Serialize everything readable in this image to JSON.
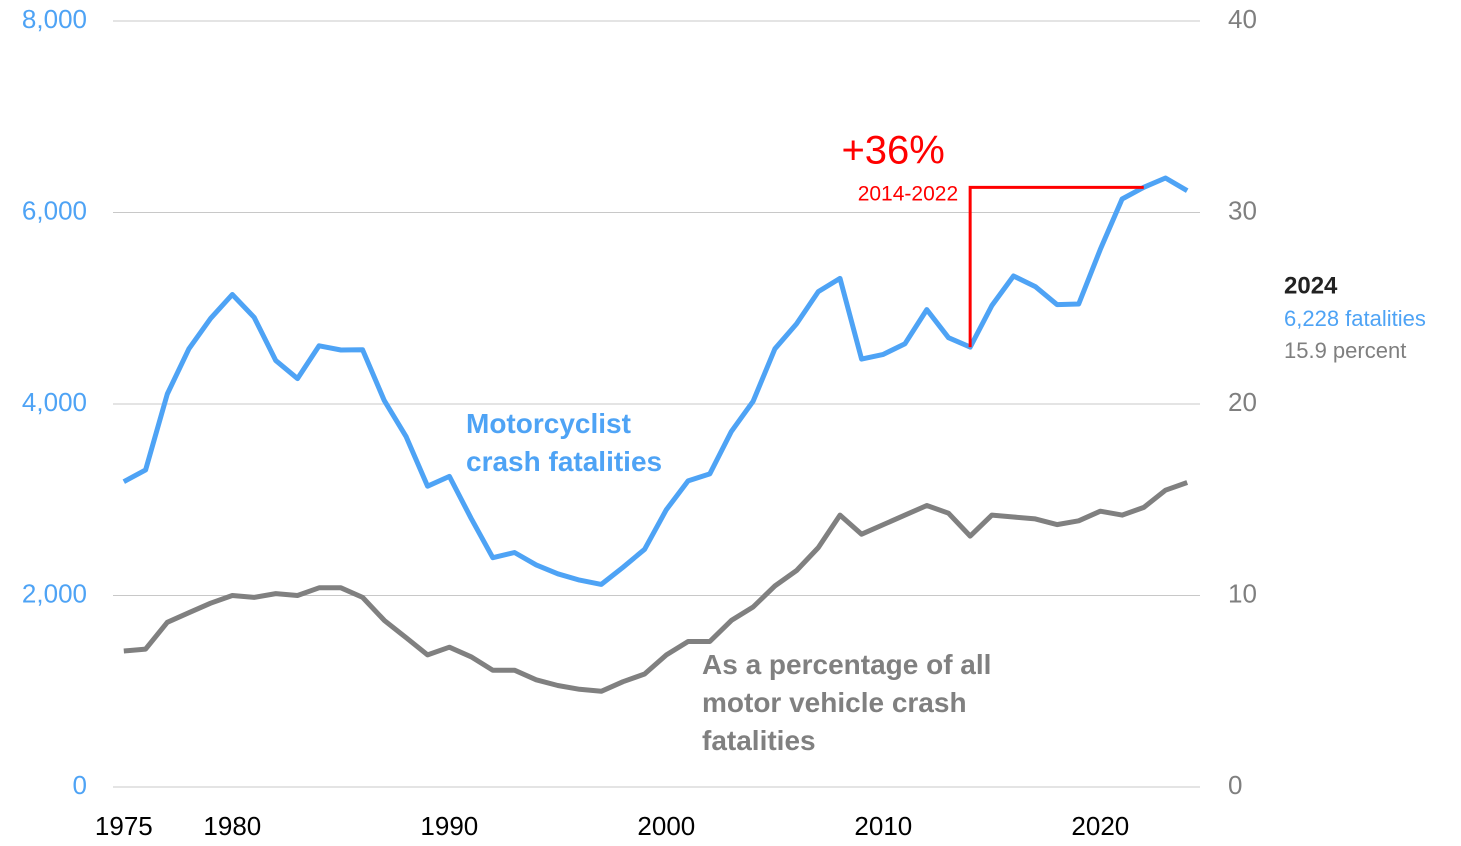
{
  "chart_data": {
    "type": "line",
    "x": [
      1975,
      1976,
      1977,
      1978,
      1979,
      1980,
      1981,
      1982,
      1983,
      1984,
      1985,
      1986,
      1987,
      1988,
      1989,
      1990,
      1991,
      1992,
      1993,
      1994,
      1995,
      1996,
      1997,
      1998,
      1999,
      2000,
      2001,
      2002,
      2003,
      2004,
      2005,
      2006,
      2007,
      2008,
      2009,
      2010,
      2011,
      2012,
      2013,
      2014,
      2015,
      2016,
      2017,
      2018,
      2019,
      2020,
      2021,
      2022,
      2023,
      2024
    ],
    "xlim": [
      1974.5,
      2024.5
    ],
    "xticks": [
      1975,
      1980,
      1990,
      2000,
      2010,
      2020
    ],
    "ylim": [
      0,
      8000
    ],
    "yticks": [
      0,
      {
        "value": 2000,
        "label": "2,000"
      },
      {
        "value": 4000,
        "label": "4,000"
      },
      {
        "value": 6000,
        "label": "6,000"
      },
      {
        "value": 8000,
        "label": "8,000"
      }
    ],
    "y2lim": [
      0,
      40
    ],
    "y2ticks": [
      0,
      10,
      20,
      30,
      40
    ],
    "grid": true,
    "series": [
      {
        "name": "Motorcyclist crash fatalities",
        "color": "#4ea3f5",
        "values": [
          3189,
          3312,
          4104,
          4577,
          4894,
          5144,
          4906,
          4453,
          4265,
          4608,
          4564,
          4566,
          4036,
          3662,
          3141,
          3244,
          2806,
          2395,
          2449,
          2320,
          2227,
          2161,
          2116,
          2294,
          2483,
          2897,
          3197,
          3270,
          3714,
          4028,
          4576,
          4837,
          5174,
          5312,
          4469,
          4518,
          4630,
          4986,
          4692,
          4594,
          5029,
          5337,
          5226,
          5038,
          5044,
          5615,
          6141,
          6263,
          6360,
          6228
        ]
      },
      {
        "name": "As a percentage of all motor vehicle crash fatalities",
        "color": "#808080",
        "axis": "y2",
        "values": [
          7.1,
          7.2,
          8.6,
          9.1,
          9.6,
          10.0,
          9.9,
          10.1,
          10.0,
          10.4,
          10.4,
          9.9,
          8.7,
          7.8,
          6.9,
          7.3,
          6.8,
          6.1,
          6.1,
          5.6,
          5.3,
          5.1,
          5.0,
          5.5,
          5.9,
          6.9,
          7.6,
          7.6,
          8.7,
          9.4,
          10.5,
          11.3,
          12.5,
          14.2,
          13.2,
          13.7,
          14.2,
          14.7,
          14.3,
          13.1,
          14.2,
          14.1,
          14.0,
          13.7,
          13.9,
          14.4,
          14.2,
          14.6,
          15.5,
          15.9
        ]
      }
    ],
    "annotation": {
      "change": "+36%",
      "period": "2014-2022",
      "color": "#ff0000"
    },
    "end_label": {
      "year": "2024",
      "fatalities": "6,228 fatalities",
      "percent": "15.9 percent"
    }
  }
}
